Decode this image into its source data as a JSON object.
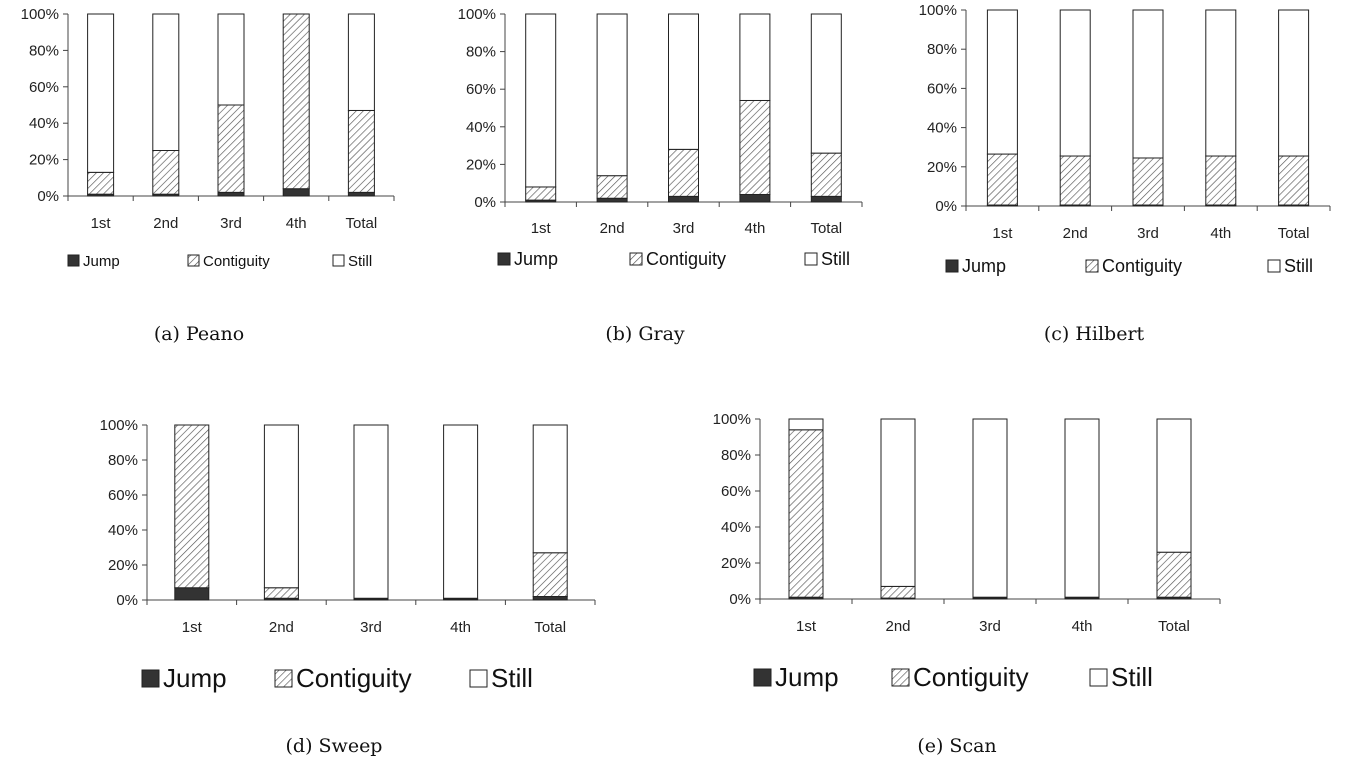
{
  "figure": {
    "legend_labels": [
      "Jump",
      "Contiguity",
      "Still"
    ],
    "y_ticks": [
      "0%",
      "20%",
      "40%",
      "60%",
      "80%",
      "100%"
    ],
    "colors": {
      "jump": "#333333",
      "contiguity_hatch": "#555555",
      "still": "#ffffff",
      "axis": "#444444"
    }
  },
  "chart_data": [
    {
      "type": "bar",
      "stacked": true,
      "caption": "(a) Peano",
      "ylim": [
        0,
        100
      ],
      "categories": [
        "1st",
        "2nd",
        "3rd",
        "4th",
        "Total"
      ],
      "series": [
        {
          "name": "Jump",
          "values": [
            1,
            1,
            2,
            4,
            2
          ]
        },
        {
          "name": "Contiguity",
          "values": [
            12,
            24,
            48,
            96,
            45
          ]
        },
        {
          "name": "Still",
          "values": [
            87,
            75,
            50,
            0,
            53
          ]
        }
      ]
    },
    {
      "type": "bar",
      "stacked": true,
      "caption": "(b) Gray",
      "ylim": [
        0,
        100
      ],
      "categories": [
        "1st",
        "2nd",
        "3rd",
        "4th",
        "Total"
      ],
      "series": [
        {
          "name": "Jump",
          "values": [
            1,
            2,
            3,
            4,
            3
          ]
        },
        {
          "name": "Contiguity",
          "values": [
            7,
            12,
            25,
            50,
            23
          ]
        },
        {
          "name": "Still",
          "values": [
            92,
            86,
            72,
            46,
            74
          ]
        }
      ]
    },
    {
      "type": "bar",
      "stacked": true,
      "caption": "(c) Hilbert",
      "ylim": [
        0,
        100
      ],
      "categories": [
        "1st",
        "2nd",
        "3rd",
        "4th",
        "Total"
      ],
      "series": [
        {
          "name": "Jump",
          "values": [
            0.5,
            0.5,
            0.5,
            0.5,
            0.5
          ]
        },
        {
          "name": "Contiguity",
          "values": [
            26,
            25,
            24,
            25,
            25
          ]
        },
        {
          "name": "Still",
          "values": [
            73.5,
            74.5,
            75.5,
            74.5,
            74.5
          ]
        }
      ]
    },
    {
      "type": "bar",
      "stacked": true,
      "caption": "(d) Sweep",
      "ylim": [
        0,
        100
      ],
      "categories": [
        "1st",
        "2nd",
        "3rd",
        "4th",
        "Total"
      ],
      "series": [
        {
          "name": "Jump",
          "values": [
            7,
            1,
            0.5,
            0.5,
            2
          ]
        },
        {
          "name": "Contiguity",
          "values": [
            93,
            6,
            0.5,
            0.5,
            25
          ]
        },
        {
          "name": "Still",
          "values": [
            0,
            93,
            99,
            99,
            73
          ]
        }
      ]
    },
    {
      "type": "bar",
      "stacked": true,
      "caption": "(e) Scan",
      "ylim": [
        0,
        100
      ],
      "categories": [
        "1st",
        "2nd",
        "3rd",
        "4th",
        "Total"
      ],
      "series": [
        {
          "name": "Jump",
          "values": [
            1,
            0.5,
            0.5,
            0.5,
            1
          ]
        },
        {
          "name": "Contiguity",
          "values": [
            93,
            6.5,
            0.5,
            0.5,
            25
          ]
        },
        {
          "name": "Still",
          "values": [
            6,
            93,
            99,
            99,
            74
          ]
        }
      ]
    }
  ]
}
